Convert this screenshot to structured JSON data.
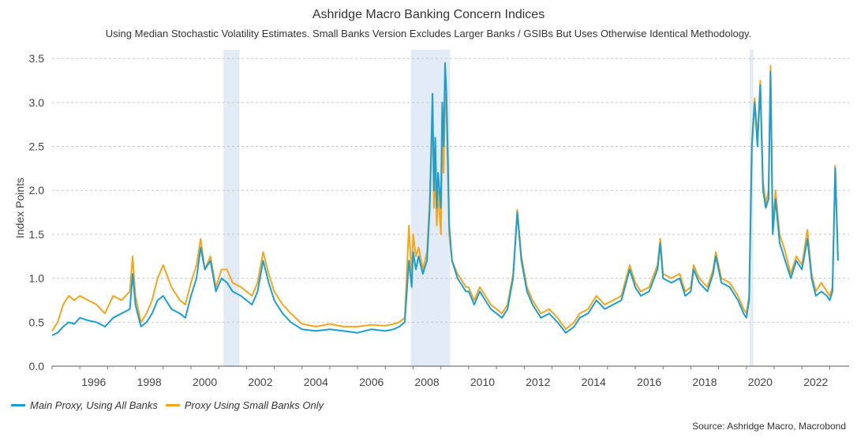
{
  "chart_data": {
    "type": "line",
    "title": "Ashridge Macro Banking Concern Indices",
    "subtitle": "Using Median Stochastic Volatility Estimates. Small Banks Version Excludes Larger Banks / GSIBs But Uses Otherwise Identical Methodology.",
    "ylabel": "Index Points",
    "xlabel": "",
    "xlim": [
      1995.0,
      2023.7
    ],
    "ylim": [
      0,
      3.6
    ],
    "yticks": [
      "0.0",
      "0.5",
      "1.0",
      "1.5",
      "2.0",
      "2.5",
      "3.0",
      "3.5"
    ],
    "xticks": [
      "1996",
      "1998",
      "2000",
      "2002",
      "2004",
      "2006",
      "2008",
      "2010",
      "2012",
      "2014",
      "2016",
      "2018",
      "2020",
      "2022"
    ],
    "grid": "horizontal dashed",
    "legend": "bottom-left",
    "recessions": [
      [
        2001.17,
        2001.75
      ],
      [
        2007.92,
        2009.33
      ],
      [
        2020.12,
        2020.25
      ]
    ],
    "series": [
      {
        "name": "Main Proxy, Using All Banks",
        "color": "#1a9fd4",
        "points": [
          [
            1995.0,
            0.35
          ],
          [
            1995.2,
            0.38
          ],
          [
            1995.4,
            0.45
          ],
          [
            1995.6,
            0.5
          ],
          [
            1995.8,
            0.48
          ],
          [
            1996.0,
            0.55
          ],
          [
            1996.3,
            0.52
          ],
          [
            1996.6,
            0.5
          ],
          [
            1996.9,
            0.45
          ],
          [
            1997.2,
            0.55
          ],
          [
            1997.5,
            0.6
          ],
          [
            1997.8,
            0.65
          ],
          [
            1997.9,
            1.05
          ],
          [
            1998.0,
            0.7
          ],
          [
            1998.2,
            0.45
          ],
          [
            1998.4,
            0.5
          ],
          [
            1998.6,
            0.6
          ],
          [
            1998.8,
            0.75
          ],
          [
            1999.0,
            0.8
          ],
          [
            1999.3,
            0.65
          ],
          [
            1999.6,
            0.6
          ],
          [
            1999.8,
            0.55
          ],
          [
            2000.0,
            0.8
          ],
          [
            2000.2,
            1.0
          ],
          [
            2000.35,
            1.35
          ],
          [
            2000.5,
            1.1
          ],
          [
            2000.7,
            1.2
          ],
          [
            2000.9,
            0.85
          ],
          [
            2001.1,
            1.0
          ],
          [
            2001.3,
            0.95
          ],
          [
            2001.5,
            0.85
          ],
          [
            2001.8,
            0.8
          ],
          [
            2002.0,
            0.75
          ],
          [
            2002.2,
            0.7
          ],
          [
            2002.4,
            0.85
          ],
          [
            2002.6,
            1.2
          ],
          [
            2002.8,
            0.95
          ],
          [
            2003.0,
            0.75
          ],
          [
            2003.3,
            0.6
          ],
          [
            2003.6,
            0.5
          ],
          [
            2004.0,
            0.42
          ],
          [
            2004.5,
            0.4
          ],
          [
            2005.0,
            0.42
          ],
          [
            2005.5,
            0.4
          ],
          [
            2006.0,
            0.38
          ],
          [
            2006.5,
            0.42
          ],
          [
            2007.0,
            0.4
          ],
          [
            2007.3,
            0.42
          ],
          [
            2007.5,
            0.45
          ],
          [
            2007.7,
            0.5
          ],
          [
            2007.85,
            1.2
          ],
          [
            2007.95,
            0.9
          ],
          [
            2008.0,
            1.3
          ],
          [
            2008.1,
            1.1
          ],
          [
            2008.2,
            1.25
          ],
          [
            2008.35,
            1.05
          ],
          [
            2008.5,
            1.2
          ],
          [
            2008.6,
            1.8
          ],
          [
            2008.7,
            3.1
          ],
          [
            2008.75,
            2.0
          ],
          [
            2008.8,
            2.6
          ],
          [
            2008.85,
            1.8
          ],
          [
            2008.9,
            2.2
          ],
          [
            2009.0,
            1.8
          ],
          [
            2009.05,
            3.0
          ],
          [
            2009.1,
            2.5
          ],
          [
            2009.15,
            3.45
          ],
          [
            2009.2,
            3.1
          ],
          [
            2009.25,
            2.4
          ],
          [
            2009.3,
            1.6
          ],
          [
            2009.4,
            1.2
          ],
          [
            2009.6,
            1.0
          ],
          [
            2009.9,
            0.85
          ],
          [
            2010.0,
            0.85
          ],
          [
            2010.2,
            0.7
          ],
          [
            2010.4,
            0.85
          ],
          [
            2010.6,
            0.75
          ],
          [
            2010.8,
            0.65
          ],
          [
            2011.0,
            0.6
          ],
          [
            2011.2,
            0.55
          ],
          [
            2011.4,
            0.65
          ],
          [
            2011.6,
            1.0
          ],
          [
            2011.75,
            1.75
          ],
          [
            2011.9,
            1.2
          ],
          [
            2012.1,
            0.85
          ],
          [
            2012.3,
            0.7
          ],
          [
            2012.6,
            0.55
          ],
          [
            2012.9,
            0.6
          ],
          [
            2013.2,
            0.5
          ],
          [
            2013.5,
            0.38
          ],
          [
            2013.8,
            0.45
          ],
          [
            2014.0,
            0.55
          ],
          [
            2014.3,
            0.6
          ],
          [
            2014.6,
            0.75
          ],
          [
            2014.9,
            0.65
          ],
          [
            2015.2,
            0.7
          ],
          [
            2015.5,
            0.75
          ],
          [
            2015.8,
            1.1
          ],
          [
            2016.0,
            0.9
          ],
          [
            2016.2,
            0.8
          ],
          [
            2016.5,
            0.85
          ],
          [
            2016.8,
            1.1
          ],
          [
            2016.9,
            1.4
          ],
          [
            2017.0,
            1.0
          ],
          [
            2017.3,
            0.95
          ],
          [
            2017.6,
            1.0
          ],
          [
            2017.8,
            0.8
          ],
          [
            2018.0,
            0.85
          ],
          [
            2018.1,
            1.1
          ],
          [
            2018.3,
            0.95
          ],
          [
            2018.6,
            0.85
          ],
          [
            2018.8,
            1.05
          ],
          [
            2018.9,
            1.25
          ],
          [
            2019.1,
            0.95
          ],
          [
            2019.4,
            0.9
          ],
          [
            2019.7,
            0.75
          ],
          [
            2019.9,
            0.6
          ],
          [
            2020.0,
            0.55
          ],
          [
            2020.1,
            0.75
          ],
          [
            2020.2,
            2.5
          ],
          [
            2020.3,
            3.0
          ],
          [
            2020.4,
            2.5
          ],
          [
            2020.5,
            3.2
          ],
          [
            2020.6,
            2.0
          ],
          [
            2020.7,
            1.8
          ],
          [
            2020.8,
            1.9
          ],
          [
            2020.87,
            3.35
          ],
          [
            2020.95,
            1.5
          ],
          [
            2021.05,
            1.9
          ],
          [
            2021.2,
            1.4
          ],
          [
            2021.4,
            1.2
          ],
          [
            2021.6,
            1.0
          ],
          [
            2021.8,
            1.2
          ],
          [
            2022.0,
            1.1
          ],
          [
            2022.2,
            1.45
          ],
          [
            2022.35,
            1.0
          ],
          [
            2022.5,
            0.8
          ],
          [
            2022.7,
            0.85
          ],
          [
            2022.9,
            0.8
          ],
          [
            2023.0,
            0.75
          ],
          [
            2023.1,
            0.85
          ],
          [
            2023.2,
            2.25
          ],
          [
            2023.3,
            1.2
          ]
        ]
      },
      {
        "name": "Proxy Using Small Banks Only",
        "color": "#f5a51a",
        "points": [
          [
            1995.0,
            0.4
          ],
          [
            1995.2,
            0.5
          ],
          [
            1995.4,
            0.7
          ],
          [
            1995.6,
            0.8
          ],
          [
            1995.8,
            0.75
          ],
          [
            1996.0,
            0.8
          ],
          [
            1996.3,
            0.75
          ],
          [
            1996.6,
            0.7
          ],
          [
            1996.9,
            0.6
          ],
          [
            1997.2,
            0.8
          ],
          [
            1997.5,
            0.75
          ],
          [
            1997.8,
            0.85
          ],
          [
            1997.9,
            1.25
          ],
          [
            1998.0,
            0.8
          ],
          [
            1998.2,
            0.5
          ],
          [
            1998.4,
            0.6
          ],
          [
            1998.6,
            0.75
          ],
          [
            1998.8,
            1.0
          ],
          [
            1999.0,
            1.15
          ],
          [
            1999.3,
            0.9
          ],
          [
            1999.6,
            0.75
          ],
          [
            1999.8,
            0.7
          ],
          [
            2000.0,
            0.95
          ],
          [
            2000.2,
            1.15
          ],
          [
            2000.35,
            1.45
          ],
          [
            2000.5,
            1.1
          ],
          [
            2000.7,
            1.25
          ],
          [
            2000.9,
            0.9
          ],
          [
            2001.1,
            1.1
          ],
          [
            2001.3,
            1.1
          ],
          [
            2001.5,
            0.95
          ],
          [
            2001.8,
            0.9
          ],
          [
            2002.0,
            0.85
          ],
          [
            2002.2,
            0.8
          ],
          [
            2002.4,
            0.95
          ],
          [
            2002.6,
            1.3
          ],
          [
            2002.8,
            1.05
          ],
          [
            2003.0,
            0.85
          ],
          [
            2003.3,
            0.7
          ],
          [
            2003.6,
            0.6
          ],
          [
            2004.0,
            0.48
          ],
          [
            2004.5,
            0.45
          ],
          [
            2005.0,
            0.48
          ],
          [
            2005.5,
            0.45
          ],
          [
            2006.0,
            0.45
          ],
          [
            2006.5,
            0.47
          ],
          [
            2007.0,
            0.46
          ],
          [
            2007.3,
            0.48
          ],
          [
            2007.5,
            0.5
          ],
          [
            2007.7,
            0.55
          ],
          [
            2007.85,
            1.6
          ],
          [
            2007.95,
            1.0
          ],
          [
            2008.0,
            1.5
          ],
          [
            2008.1,
            1.25
          ],
          [
            2008.2,
            1.35
          ],
          [
            2008.35,
            1.1
          ],
          [
            2008.5,
            1.3
          ],
          [
            2008.6,
            1.9
          ],
          [
            2008.7,
            2.9
          ],
          [
            2008.75,
            1.8
          ],
          [
            2008.8,
            2.3
          ],
          [
            2008.85,
            1.6
          ],
          [
            2008.9,
            2.0
          ],
          [
            2009.0,
            1.5
          ],
          [
            2009.05,
            2.6
          ],
          [
            2009.1,
            2.2
          ],
          [
            2009.15,
            3.1
          ],
          [
            2009.2,
            2.9
          ],
          [
            2009.25,
            2.2
          ],
          [
            2009.3,
            1.5
          ],
          [
            2009.4,
            1.2
          ],
          [
            2009.6,
            1.05
          ],
          [
            2009.9,
            0.9
          ],
          [
            2010.0,
            0.9
          ],
          [
            2010.2,
            0.75
          ],
          [
            2010.4,
            0.9
          ],
          [
            2010.6,
            0.8
          ],
          [
            2010.8,
            0.7
          ],
          [
            2011.0,
            0.65
          ],
          [
            2011.2,
            0.6
          ],
          [
            2011.4,
            0.7
          ],
          [
            2011.6,
            1.05
          ],
          [
            2011.75,
            1.78
          ],
          [
            2011.9,
            1.25
          ],
          [
            2012.1,
            0.9
          ],
          [
            2012.3,
            0.75
          ],
          [
            2012.6,
            0.6
          ],
          [
            2012.9,
            0.65
          ],
          [
            2013.2,
            0.55
          ],
          [
            2013.5,
            0.42
          ],
          [
            2013.8,
            0.5
          ],
          [
            2014.0,
            0.6
          ],
          [
            2014.3,
            0.65
          ],
          [
            2014.6,
            0.8
          ],
          [
            2014.9,
            0.7
          ],
          [
            2015.2,
            0.75
          ],
          [
            2015.5,
            0.8
          ],
          [
            2015.8,
            1.15
          ],
          [
            2016.0,
            0.95
          ],
          [
            2016.2,
            0.85
          ],
          [
            2016.5,
            0.9
          ],
          [
            2016.8,
            1.15
          ],
          [
            2016.9,
            1.45
          ],
          [
            2017.0,
            1.05
          ],
          [
            2017.3,
            1.0
          ],
          [
            2017.6,
            1.05
          ],
          [
            2017.8,
            0.85
          ],
          [
            2018.0,
            0.9
          ],
          [
            2018.1,
            1.15
          ],
          [
            2018.3,
            1.0
          ],
          [
            2018.6,
            0.9
          ],
          [
            2018.8,
            1.1
          ],
          [
            2018.9,
            1.3
          ],
          [
            2019.1,
            1.0
          ],
          [
            2019.4,
            0.95
          ],
          [
            2019.7,
            0.8
          ],
          [
            2019.9,
            0.65
          ],
          [
            2020.0,
            0.6
          ],
          [
            2020.1,
            0.8
          ],
          [
            2020.2,
            2.55
          ],
          [
            2020.3,
            3.05
          ],
          [
            2020.4,
            2.6
          ],
          [
            2020.5,
            3.25
          ],
          [
            2020.6,
            2.1
          ],
          [
            2020.7,
            1.85
          ],
          [
            2020.8,
            2.0
          ],
          [
            2020.87,
            3.42
          ],
          [
            2020.95,
            1.6
          ],
          [
            2021.05,
            2.0
          ],
          [
            2021.2,
            1.5
          ],
          [
            2021.4,
            1.3
          ],
          [
            2021.6,
            1.05
          ],
          [
            2021.8,
            1.25
          ],
          [
            2022.0,
            1.15
          ],
          [
            2022.2,
            1.55
          ],
          [
            2022.35,
            1.05
          ],
          [
            2022.5,
            0.85
          ],
          [
            2022.7,
            0.95
          ],
          [
            2022.9,
            0.85
          ],
          [
            2023.0,
            0.8
          ],
          [
            2023.1,
            0.9
          ],
          [
            2023.2,
            2.28
          ],
          [
            2023.3,
            1.25
          ]
        ]
      }
    ],
    "source": "Source: Ashridge Macro, Macrobond"
  }
}
